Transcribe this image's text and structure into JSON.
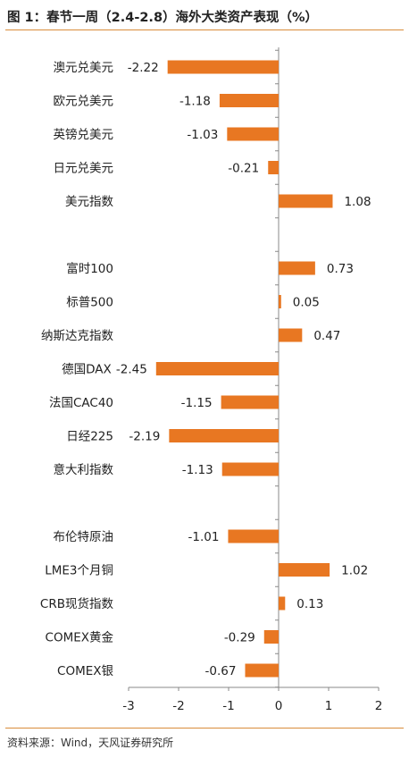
{
  "header": {
    "title": "图 1：春节一周（2.4-2.8）海外大类资产表现（%）"
  },
  "footer": {
    "source": "资料来源：Wind，天风证券研究所"
  },
  "colors": {
    "bar": "#E87722",
    "axis": "#888888",
    "rule": "#D98C3A"
  },
  "chart_data": {
    "type": "bar",
    "orientation": "horizontal",
    "title": "图 1：春节一周（2.4-2.8）海外大类资产表现（%）",
    "xlabel": "",
    "ylabel": "",
    "xlim": [
      -3,
      2
    ],
    "xticks": [
      -3,
      -2,
      -1,
      0,
      1,
      2
    ],
    "grid": false,
    "legend": "none",
    "categories": [
      "澳元兑美元",
      "欧元兑美元",
      "英镑兑美元",
      "日元兑美元",
      "美元指数",
      "",
      "富时100",
      "标普500",
      "纳斯达克指数",
      "德国DAX",
      "法国CAC40",
      "日经225",
      "意大利指数",
      "",
      "布伦特原油",
      "LME3个月铜",
      "CRB现货指数",
      "COMEX黄金",
      "COMEX银"
    ],
    "values": [
      -2.22,
      -1.18,
      -1.03,
      -0.21,
      1.08,
      null,
      0.73,
      0.05,
      0.47,
      -2.45,
      -1.15,
      -2.19,
      -1.13,
      null,
      -1.01,
      1.02,
      0.13,
      -0.29,
      -0.67
    ]
  }
}
